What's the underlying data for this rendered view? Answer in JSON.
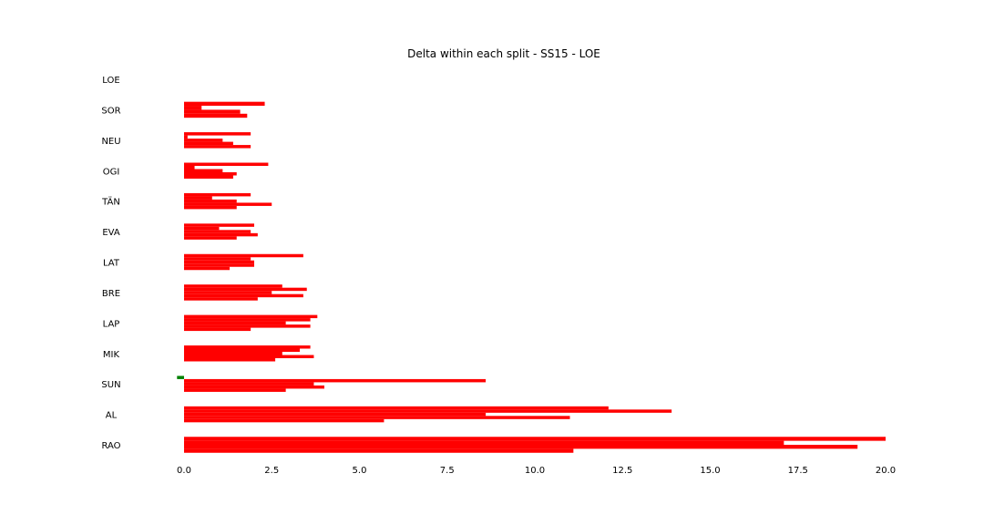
{
  "chart_data": {
    "type": "bar",
    "orientation": "horizontal",
    "title": "Delta within each split - SS15 - LOE",
    "xlabel": "",
    "ylabel": "",
    "xlim": [
      0,
      20
    ],
    "xticks": [
      "0.0",
      "2.5",
      "5.0",
      "7.5",
      "10.0",
      "12.5",
      "15.0",
      "17.5",
      "20.0"
    ],
    "grid": false,
    "colors": {
      "positive": "#ff0000",
      "negative": "#008000"
    },
    "categories": [
      "LOE",
      "SOR",
      "NEU",
      "OGI",
      "TÄN",
      "EVA",
      "LAT",
      "BRE",
      "LAP",
      "MIK",
      "SUN",
      "AL",
      "RAO"
    ],
    "series_values": [
      [],
      [
        2.3,
        0.5,
        1.6,
        1.8
      ],
      [
        1.9,
        0.1,
        1.1,
        1.4,
        1.9
      ],
      [
        2.4,
        0.3,
        1.1,
        1.5,
        1.4
      ],
      [
        1.9,
        0.8,
        1.5,
        2.5,
        1.5
      ],
      [
        2.0,
        1.0,
        1.9,
        2.1,
        1.5
      ],
      [
        3.4,
        1.9,
        2.0,
        2.0,
        1.3
      ],
      [
        2.8,
        3.5,
        2.5,
        3.4,
        2.1
      ],
      [
        3.8,
        3.6,
        2.9,
        3.6,
        1.9
      ],
      [
        3.6,
        3.3,
        2.8,
        3.7,
        2.6
      ],
      [
        -0.2,
        8.6,
        3.7,
        4.0,
        2.9
      ],
      [
        12.1,
        13.9,
        8.6,
        11.0,
        5.7
      ],
      [
        20.0,
        17.1,
        19.2,
        11.1
      ]
    ]
  }
}
